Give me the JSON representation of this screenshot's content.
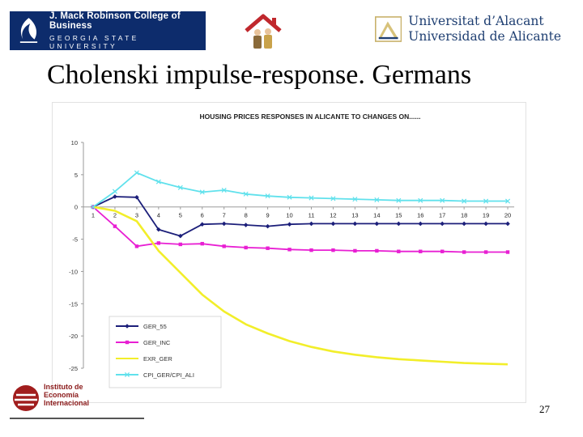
{
  "header": {
    "gsu_logo": {
      "line1": "J. Mack Robinson College of Business",
      "line2": "GEORGIA STATE UNIVERSITY"
    },
    "ua_logo": {
      "line1": "Universitat d’Alacant",
      "line2": "Universidad de Alicante"
    }
  },
  "slide": {
    "title": "Cholenski impulse-response. Germans",
    "page_number": "27"
  },
  "footer": {
    "iei_logo": {
      "line1": "Instituto de",
      "line2": "Economía",
      "line3": "Internacional"
    }
  },
  "chart_data": {
    "type": "line",
    "title": "HOUSING PRICES RESPONSES IN ALICANTE TO CHANGES ON......",
    "xlabel": "",
    "ylabel": "",
    "categories": [
      "1",
      "2",
      "3",
      "4",
      "5",
      "6",
      "7",
      "8",
      "9",
      "10",
      "11",
      "12",
      "13",
      "14",
      "15",
      "16",
      "17",
      "18",
      "19",
      "20"
    ],
    "ylim": [
      -25,
      10
    ],
    "yticks": [
      10,
      5,
      0,
      -5,
      -10,
      -15,
      -20,
      -25
    ],
    "ytick_labels": [
      "10",
      "5",
      "0",
      "-5",
      "-10",
      "-15",
      "-20",
      "-25"
    ],
    "grid": false,
    "legend_position": "bottom-left",
    "series": [
      {
        "name": "GER_55",
        "color": "#1c1f7a",
        "marker": "diamond",
        "values": [
          0,
          1.6,
          1.5,
          -3.5,
          -4.5,
          -2.7,
          -2.6,
          -2.8,
          -3.0,
          -2.7,
          -2.6,
          -2.6,
          -2.6,
          -2.6,
          -2.6,
          -2.6,
          -2.6,
          -2.6,
          -2.6,
          -2.6
        ]
      },
      {
        "name": "GER_INC",
        "color": "#e81fd3",
        "marker": "square",
        "values": [
          0,
          -3.0,
          -6.1,
          -5.6,
          -5.8,
          -5.7,
          -6.1,
          -6.3,
          -6.4,
          -6.6,
          -6.7,
          -6.7,
          -6.8,
          -6.8,
          -6.9,
          -6.9,
          -6.9,
          -7.0,
          -7.0,
          -7.0
        ]
      },
      {
        "name": "EXR_GER",
        "color": "#f2ee2a",
        "marker": "none",
        "values": [
          0,
          -0.6,
          -2.2,
          -6.8,
          -10.2,
          -13.6,
          -16.2,
          -18.2,
          -19.6,
          -20.8,
          -21.7,
          -22.4,
          -22.9,
          -23.3,
          -23.6,
          -23.8,
          -24.0,
          -24.2,
          -24.3,
          -24.4
        ]
      },
      {
        "name": "CPI_GER/CPI_ALI",
        "color": "#60e1ec",
        "marker": "x",
        "values": [
          0,
          2.4,
          5.3,
          3.9,
          3.0,
          2.3,
          2.6,
          2.0,
          1.7,
          1.5,
          1.4,
          1.3,
          1.2,
          1.1,
          1.0,
          1.0,
          1.0,
          0.9,
          0.9,
          0.9
        ]
      }
    ]
  }
}
